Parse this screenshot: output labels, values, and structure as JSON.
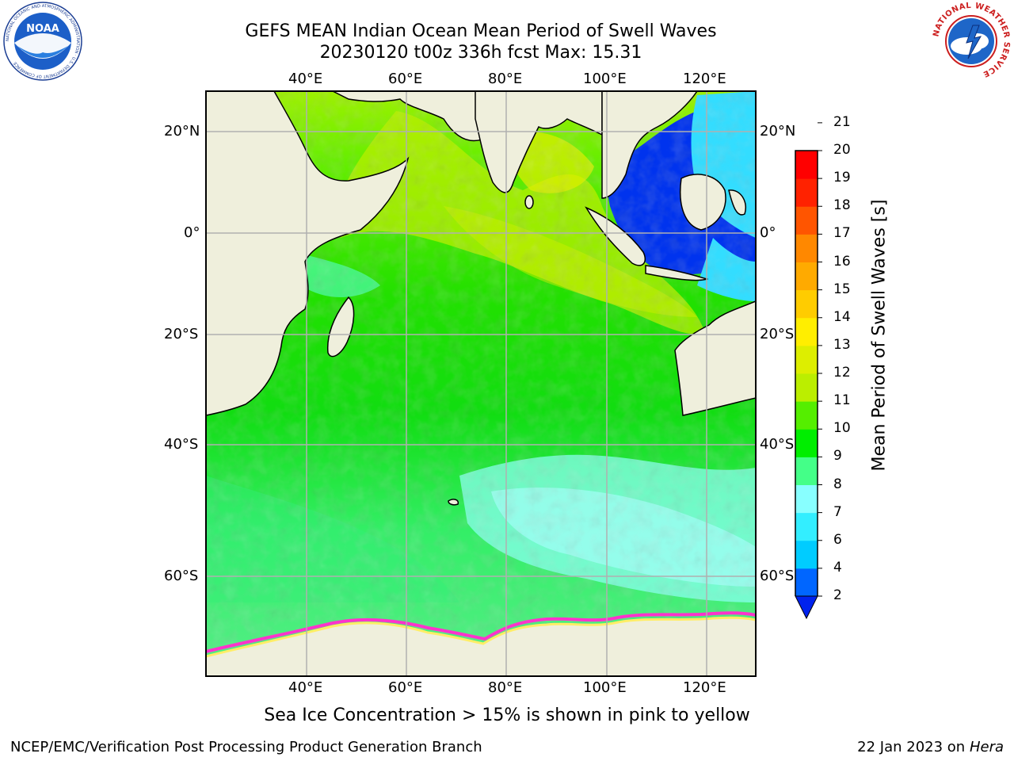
{
  "title_line1": "GEFS MEAN Indian Ocean Mean Period of Swell Waves",
  "title_line2": "20230120 t00z 336h fcst   Max: 15.31",
  "logos": {
    "left": {
      "icon": "noaa-logo-icon",
      "text": "NOAA",
      "ring_text": "NATIONAL OCEANIC AND ATMOSPHERIC ADMINISTRATION · U.S. DEPARTMENT OF COMMERCE"
    },
    "right": {
      "icon": "nws-logo-icon",
      "ring_text": "NATIONAL WEATHER SERVICE"
    }
  },
  "map": {
    "lon_labels": [
      "40°E",
      "60°E",
      "80°E",
      "100°E",
      "120°E"
    ],
    "lat_labels": [
      "20°N",
      "0°",
      "20°S",
      "40°S",
      "60°S"
    ],
    "land_color": "#efefdc",
    "grid_color": "#b0b0b0"
  },
  "colorbar": {
    "label": "Mean Period of Swell Waves [s]",
    "ticks": [
      "2",
      "4",
      "6",
      "7",
      "8",
      "9",
      "10",
      "11",
      "12",
      "13",
      "14",
      "15",
      "16",
      "17",
      "18",
      "19",
      "20",
      "21"
    ],
    "colors": [
      "#0066ff",
      "#00ccff",
      "#33eeff",
      "#88ffff",
      "#44ff88",
      "#00ee00",
      "#55ee00",
      "#bbee00",
      "#ddee00",
      "#ffee00",
      "#ffcc00",
      "#ffaa00",
      "#ff8800",
      "#ff5500",
      "#ff2200",
      "#ff0000"
    ],
    "under_color": "#0022ee"
  },
  "sea_ice_note": "Sea Ice Concentration > 15% is shown in pink to yellow",
  "footer": {
    "left": "NCEP/EMC/Verification Post Processing Product Generation Branch",
    "right_prefix": "22 Jan 2023 on ",
    "right_host": "Hera"
  }
}
